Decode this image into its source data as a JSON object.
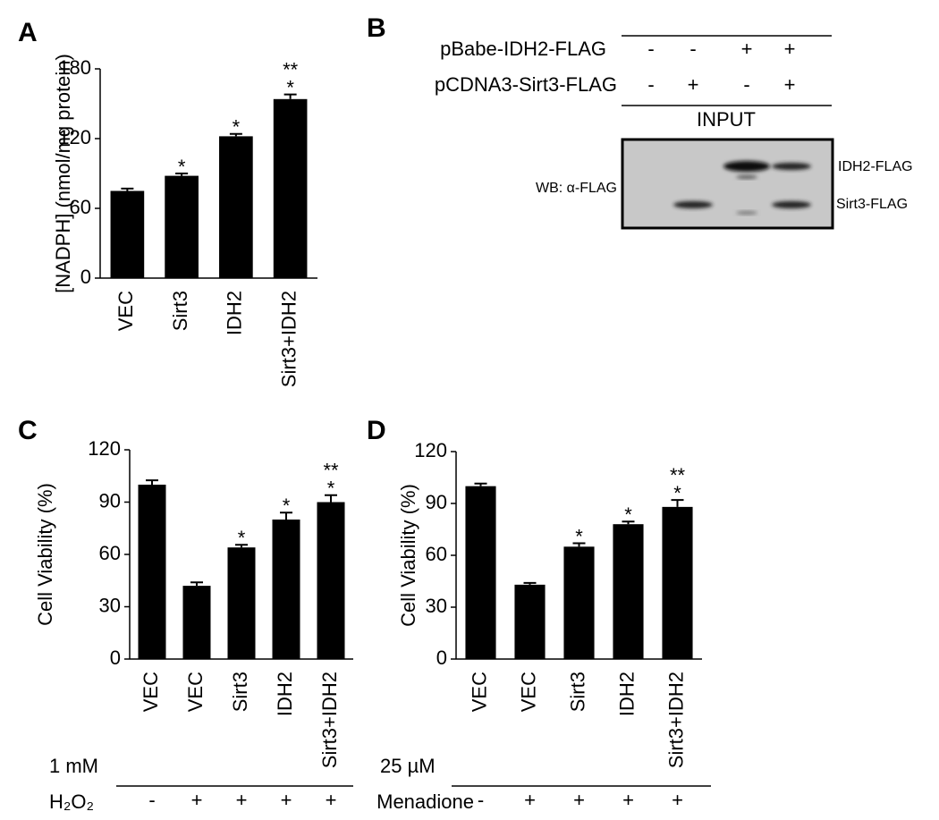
{
  "chart_data": [
    {
      "type": "bar",
      "panel": "A",
      "y_label": "[NADPH] (nmol/mg protein)",
      "categories": [
        "VEC",
        "Sirt3",
        "IDH2",
        "Sirt3+IDH2"
      ],
      "values": [
        75,
        88,
        122,
        154
      ],
      "errors": [
        2,
        2,
        2,
        4
      ],
      "color": "#000000",
      "significance": [
        [],
        [
          "*"
        ],
        [
          "*"
        ],
        [
          "**",
          "*"
        ]
      ],
      "ylim": [
        0,
        180
      ],
      "yticks": [
        0,
        60,
        120,
        180
      ]
    },
    {
      "type": "bar",
      "panel": "C",
      "y_label": "Cell Viability (%)",
      "categories": [
        "VEC",
        "VEC",
        "Sirt3",
        "IDH2",
        "Sirt3+IDH2"
      ],
      "values": [
        100,
        42,
        64,
        80,
        90
      ],
      "errors": [
        2.5,
        2,
        1.5,
        4,
        4
      ],
      "color": "#000000",
      "significance": [
        [],
        [],
        [
          "*"
        ],
        [
          "*"
        ],
        [
          "**",
          "*"
        ]
      ],
      "ylim": [
        0,
        120
      ],
      "yticks": [
        0,
        30,
        60,
        90,
        120
      ],
      "treatment": {
        "dose": "1 mM",
        "agent": "H₂O₂",
        "signs": [
          "-",
          "+",
          "+",
          "+",
          "+"
        ]
      }
    },
    {
      "type": "bar",
      "panel": "D",
      "y_label": "Cell Viability (%)",
      "categories": [
        "VEC",
        "VEC",
        "Sirt3",
        "IDH2",
        "Sirt3+IDH2"
      ],
      "values": [
        100,
        43,
        65,
        78,
        88
      ],
      "errors": [
        1.5,
        1,
        2,
        1.5,
        4
      ],
      "color": "#000000",
      "significance": [
        [],
        [],
        [
          "*"
        ],
        [
          "*"
        ],
        [
          "**",
          "*"
        ]
      ],
      "ylim": [
        0,
        120
      ],
      "yticks": [
        0,
        30,
        60,
        90,
        120
      ],
      "treatment": {
        "dose": "25 µM",
        "agent": "Menadione",
        "signs": [
          "-",
          "+",
          "+",
          "+",
          "+"
        ]
      }
    }
  ],
  "blot": {
    "panel": "B",
    "rows": [
      {
        "label": "pBabe-IDH2-FLAG",
        "signs": [
          "-",
          "-",
          "+",
          "+"
        ]
      },
      {
        "label": "pCDNA3-Sirt3-FLAG",
        "signs": [
          "-",
          "+",
          "-",
          "+"
        ]
      }
    ],
    "header": "INPUT",
    "wb_label": "WB: α-FLAG",
    "bands": [
      "IDH2-FLAG",
      "Sirt3-FLAG"
    ]
  }
}
